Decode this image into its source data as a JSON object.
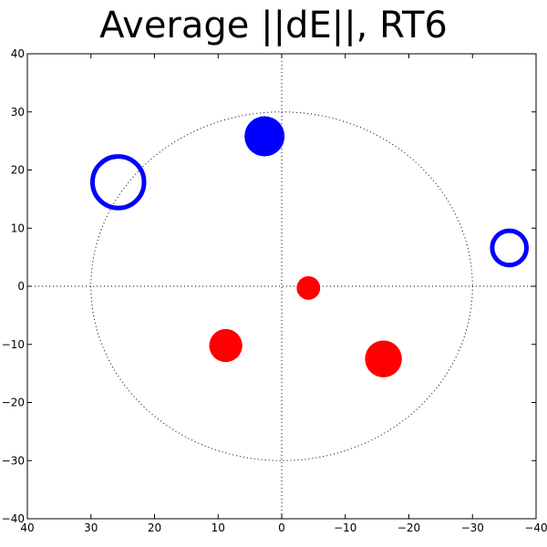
{
  "chart_data": {
    "type": "scatter",
    "title": "Average ||dE||, RT6",
    "xlim": [
      40,
      -40
    ],
    "ylim": [
      -40,
      40
    ],
    "xticks": [
      40,
      30,
      20,
      10,
      0,
      -10,
      -20,
      -30,
      -40
    ],
    "yticks": [
      40,
      30,
      20,
      10,
      0,
      -10,
      -20,
      -30,
      -40
    ],
    "xtick_labels": [
      "40",
      "30",
      "20",
      "10",
      "0",
      "−10",
      "−20",
      "−30",
      "−40"
    ],
    "ytick_labels": [
      "40",
      "30",
      "20",
      "10",
      "0",
      "−10",
      "−20",
      "−30",
      "−40"
    ],
    "grid": false,
    "reference_circle": {
      "radius": 30,
      "style": "dotted"
    },
    "reference_lines": {
      "x": 0,
      "y": 0,
      "style": "dotted"
    },
    "points": [
      {
        "x": -4.2,
        "y": -0.3,
        "size": 3.7,
        "color": "#ff0000",
        "filled": true
      },
      {
        "x": 8.8,
        "y": -10.2,
        "size": 5.2,
        "color": "#ff0000",
        "filled": true
      },
      {
        "x": -16.0,
        "y": -12.5,
        "size": 5.8,
        "color": "#ff0000",
        "filled": true
      },
      {
        "x": 2.7,
        "y": 25.8,
        "size": 6.3,
        "color": "#0000ff",
        "filled": true
      },
      {
        "x": 25.7,
        "y": 17.9,
        "size": 8.1,
        "color": "#0000ff",
        "filled": false
      },
      {
        "x": -35.8,
        "y": 6.6,
        "size": 5.4,
        "color": "#0000ff",
        "filled": false
      }
    ]
  }
}
